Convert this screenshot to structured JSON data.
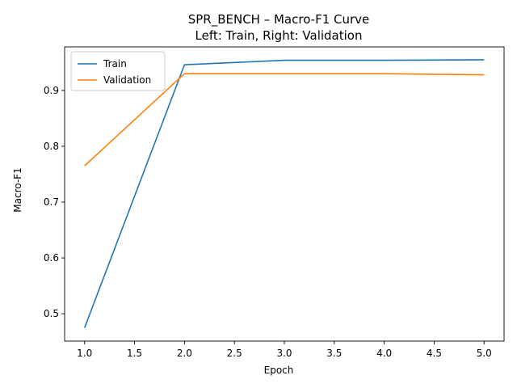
{
  "chart_data": {
    "type": "line",
    "title": "SPR_BENCH – Macro-F1 Curve",
    "subtitle": "Left: Train, Right: Validation",
    "xlabel": "Epoch",
    "ylabel": "Macro-F1",
    "x": [
      1,
      2,
      3,
      4,
      5
    ],
    "xlim": [
      0.8,
      5.2
    ],
    "ylim": [
      0.451,
      0.978
    ],
    "xticks": [
      1.0,
      1.5,
      2.0,
      2.5,
      3.0,
      3.5,
      4.0,
      4.5,
      5.0
    ],
    "xtick_labels": [
      "1.0",
      "1.5",
      "2.0",
      "2.5",
      "3.0",
      "3.5",
      "4.0",
      "4.5",
      "5.0"
    ],
    "yticks": [
      0.5,
      0.6,
      0.7,
      0.8,
      0.9
    ],
    "ytick_labels": [
      "0.5",
      "0.6",
      "0.7",
      "0.8",
      "0.9"
    ],
    "grid": false,
    "legend_position": "top-left",
    "series": [
      {
        "name": "Train",
        "color": "#1f77b4",
        "values": [
          0.475,
          0.946,
          0.954,
          0.954,
          0.955
        ]
      },
      {
        "name": "Validation",
        "color": "#ff7f0e",
        "values": [
          0.765,
          0.93,
          0.93,
          0.93,
          0.928
        ]
      }
    ]
  }
}
